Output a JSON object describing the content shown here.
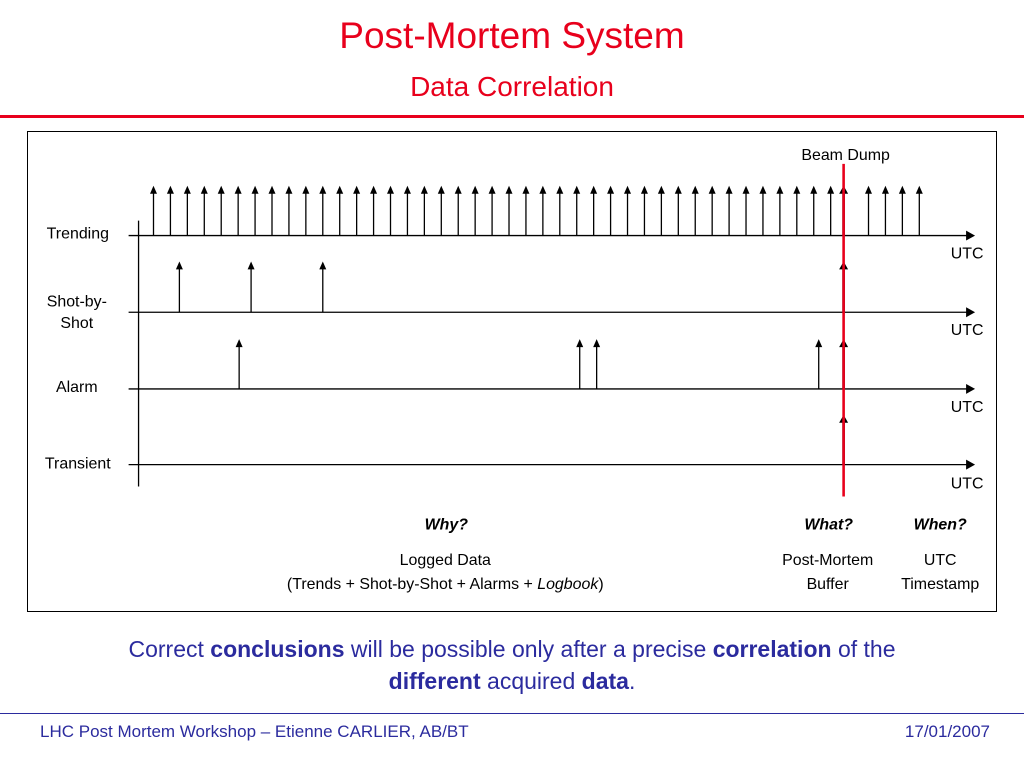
{
  "header": {
    "title": "Post-Mortem System",
    "subtitle": "Data Correlation"
  },
  "diagram": {
    "beam_dump_label": "Beam Dump",
    "axis_unit_label": "UTC",
    "rows": [
      {
        "label_lines": [
          "Trending"
        ],
        "event_times": [
          152,
          169,
          186,
          203,
          220,
          237,
          254,
          271,
          288,
          305,
          322,
          339,
          356,
          373,
          390,
          407,
          424,
          441,
          458,
          475,
          492,
          509,
          526,
          543,
          560,
          577,
          594,
          611,
          628,
          645,
          662,
          679,
          696,
          713,
          730,
          747,
          764,
          781,
          798,
          815,
          832,
          845,
          870,
          887,
          904,
          921
        ],
        "bold_times": [
          845
        ]
      },
      {
        "label_lines": [
          "Shot-by-",
          "Shot"
        ],
        "event_times": [
          178,
          250,
          322,
          845
        ],
        "bold_times": [
          845
        ]
      },
      {
        "label_lines": [
          "Alarm"
        ],
        "event_times": [
          238,
          580,
          597,
          820,
          845
        ],
        "bold_times": [
          845
        ]
      },
      {
        "label_lines": [
          "Transient"
        ],
        "event_times": [
          845
        ],
        "bold_times": [
          845
        ]
      }
    ],
    "beam_dump_time": 845,
    "questions": {
      "why": "Why?",
      "what": "What?",
      "when": "When?"
    },
    "logged_data": {
      "line1": "Logged Data",
      "line2_prefix": "(Trends + Shot-by-Shot + Alarms + ",
      "line2_italic": "Logbook",
      "line2_suffix": ")"
    },
    "post_mortem_buffer": {
      "line1": "Post-Mortem",
      "line2": "Buffer"
    },
    "utc_timestamp": {
      "line1": "UTC",
      "line2": "Timestamp"
    },
    "colors": {
      "beam_dump_line": "#e8001c",
      "axis": "#000000"
    }
  },
  "conclusion": {
    "part1": "Correct ",
    "bold1": "conclusions",
    "part2": " will be possible only after a precise ",
    "bold2": "correlation",
    "part3": " of the",
    "bold3": "different",
    "part4": " acquired ",
    "bold4": "data",
    "part5": "."
  },
  "footer": {
    "left": "LHC Post Mortem Workshop – Etienne CARLIER, AB/BT",
    "right": "17/01/2007"
  }
}
